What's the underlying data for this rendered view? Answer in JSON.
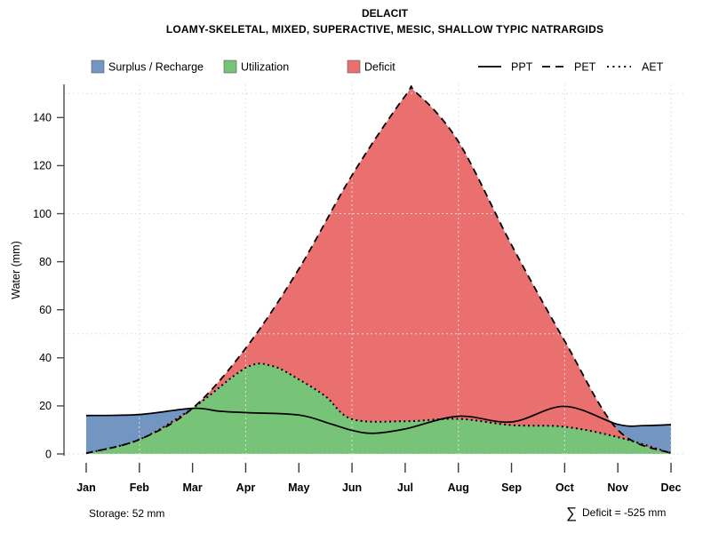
{
  "title": "DELACIT",
  "subtitle": "LOAMY-SKELETAL, MIXED, SUPERACTIVE, MESIC, SHALLOW TYPIC NATRARGIDS",
  "legend": {
    "areas": [
      {
        "label": "Surplus / Recharge",
        "key": "surplus"
      },
      {
        "label": "Utilization",
        "key": "utilization"
      },
      {
        "label": "Deficit",
        "key": "deficit"
      }
    ],
    "lines": [
      {
        "label": "PPT",
        "style": "solid"
      },
      {
        "label": "PET",
        "style": "dashed"
      },
      {
        "label": "AET",
        "style": "dotted"
      }
    ]
  },
  "footer": {
    "storage": "Storage: 52 mm",
    "sigma": "∑",
    "deficit": "Deficit = -525 mm"
  },
  "colors": {
    "surplus": "#7295c2",
    "utilization": "#77c377",
    "deficit": "#ea7070",
    "grid": "#e2e2e2",
    "axis": "#4a4a4a",
    "tick": "#3a3a3a",
    "line": "#000000"
  },
  "chart_data": {
    "type": "area",
    "title": "DELACIT",
    "subtitle": "LOAMY-SKELETAL, MIXED, SUPERACTIVE, MESIC, SHALLOW TYPIC NATRARGIDS",
    "ylabel": "Water (mm)",
    "xlabel": "",
    "categories": [
      "Jan",
      "Feb",
      "Mar",
      "Apr",
      "May",
      "Jun",
      "Jul",
      "Aug",
      "Sep",
      "Oct",
      "Nov",
      "Dec"
    ],
    "yticks": [
      0,
      20,
      40,
      60,
      80,
      100,
      120,
      140
    ],
    "ylim": [
      0,
      155
    ],
    "grid": {
      "h_mm": [
        0,
        50,
        100,
        150
      ],
      "v_month_indices": [
        1,
        3,
        5,
        7,
        9,
        11
      ],
      "style": "dotted"
    },
    "legend_position": "top",
    "series": [
      {
        "name": "PPT",
        "line": "solid",
        "x": [
          0,
          1,
          2,
          2.5,
          3,
          4,
          4.6,
          5,
          5.4,
          6,
          7,
          8,
          9,
          10,
          10.5,
          11
        ],
        "y": [
          16,
          16.4,
          19,
          17.8,
          17.2,
          16.2,
          12.5,
          9.8,
          8.6,
          10.4,
          15.7,
          13.3,
          19.8,
          12.3,
          11.8,
          12.2
        ]
      },
      {
        "name": "PET",
        "line": "dashed",
        "x": [
          0,
          1,
          2,
          3,
          4,
          5,
          6,
          6.2,
          7,
          8,
          9,
          10,
          11
        ],
        "y": [
          0.3,
          6,
          19,
          44,
          77,
          116,
          149,
          150.5,
          130,
          87,
          47,
          10,
          0.3
        ]
      },
      {
        "name": "AET",
        "line": "dotted",
        "x": [
          0,
          1,
          2,
          3,
          3.5,
          4,
          4.5,
          5,
          6,
          7,
          8,
          9,
          10,
          11
        ],
        "y": [
          0.3,
          6,
          19,
          35.8,
          36.6,
          31,
          24,
          14.5,
          13.6,
          14.6,
          12,
          11.3,
          7,
          0.3
        ]
      }
    ],
    "areas": [
      {
        "name": "Surplus / Recharge",
        "color": "#7295c2",
        "between": [
          "baseline",
          "PPT"
        ]
      },
      {
        "name": "Utilization",
        "color": "#77c377",
        "between": [
          "baseline",
          "AET"
        ]
      },
      {
        "name": "Deficit",
        "color": "#ea7070",
        "between": [
          "AET",
          "PET"
        ]
      }
    ],
    "annotations": {
      "storage_label": "Storage: 52 mm",
      "storage_mm": 52,
      "deficit_label": "∑ Deficit = -525 mm",
      "total_deficit_mm": -525
    }
  }
}
